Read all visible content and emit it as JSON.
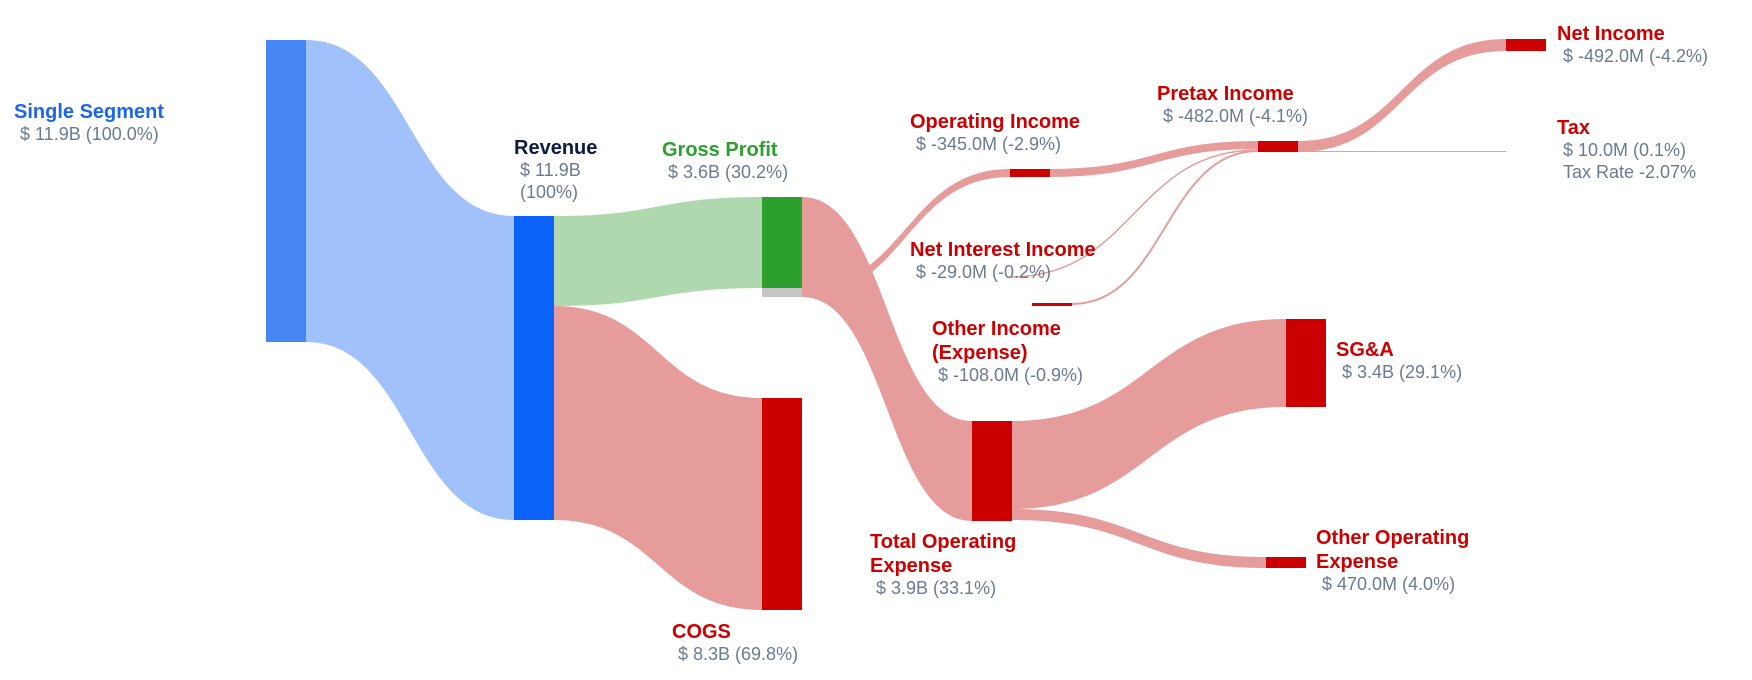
{
  "colors": {
    "blue_node": "#4687f5",
    "blue_link": "#a0c1fa",
    "revenue_node": "#0b62f7",
    "green_node": "#2ca02c",
    "green_link": "#afd8af",
    "red_node": "#cc0000",
    "red_link": "#e79c9c",
    "grey_node": "#c6c6c6",
    "segment_label": "#1a66f0",
    "revenue_label": "#0d1b3e",
    "profit_label": "#2ca02c",
    "loss_label": "#cc0000",
    "value_text": "#6b7a90"
  },
  "chart_data": {
    "type": "sankey",
    "nodes": [
      {
        "id": "single_segment",
        "name": "Single Segment",
        "value_text": "$ 11.9B (100.0%)"
      },
      {
        "id": "revenue",
        "name": "Revenue",
        "value_text": "$ 11.9B",
        "value_text2": "(100%)"
      },
      {
        "id": "gross_profit",
        "name": "Gross Profit",
        "value_text": "$ 3.6B (30.2%)"
      },
      {
        "id": "cogs",
        "name": "COGS",
        "value_text": "$ 8.3B (69.8%)"
      },
      {
        "id": "operating_income",
        "name": "Operating Income",
        "value_text": "$ -345.0M (-2.9%)"
      },
      {
        "id": "net_interest_income",
        "name": "Net Interest Income",
        "value_text": "$ -29.0M (-0.2%)"
      },
      {
        "id": "other_income",
        "name": "Other Income",
        "name2": "(Expense)",
        "value_text": "$ -108.0M (-0.9%)"
      },
      {
        "id": "total_operating_expense",
        "name": "Total Operating",
        "name2": "Expense",
        "value_text": "$ 3.9B (33.1%)"
      },
      {
        "id": "pretax_income",
        "name": "Pretax Income",
        "value_text": "$ -482.0M (-4.1%)"
      },
      {
        "id": "sga",
        "name": "SG&A",
        "value_text": "$ 3.4B (29.1%)"
      },
      {
        "id": "other_operating_expense",
        "name": "Other Operating",
        "name2": "Expense",
        "value_text": "$ 470.0M (4.0%)"
      },
      {
        "id": "net_income",
        "name": "Net Income",
        "value_text": "$ -492.0M (-4.2%)"
      },
      {
        "id": "tax",
        "name": "Tax",
        "value_text": "$ 10.0M (0.1%)",
        "value_text2": "Tax Rate -2.07%"
      }
    ],
    "links": [
      {
        "source": "single_segment",
        "target": "revenue",
        "value": 11.9
      },
      {
        "source": "revenue",
        "target": "gross_profit",
        "value": 3.6
      },
      {
        "source": "revenue",
        "target": "cogs",
        "value": 8.3
      },
      {
        "source": "gross_profit",
        "target": "total_operating_expense",
        "value": 3.9
      },
      {
        "source": "gross_profit",
        "target": "operating_income",
        "value": -0.345
      },
      {
        "source": "operating_income",
        "target": "pretax_income",
        "value": -0.345
      },
      {
        "source": "net_interest_income",
        "target": "pretax_income",
        "value": -0.029
      },
      {
        "source": "other_income",
        "target": "pretax_income",
        "value": -0.108
      },
      {
        "source": "total_operating_expense",
        "target": "sga",
        "value": 3.4
      },
      {
        "source": "total_operating_expense",
        "target": "other_operating_expense",
        "value": 0.47
      },
      {
        "source": "pretax_income",
        "target": "net_income",
        "value": -0.492
      },
      {
        "source": "pretax_income",
        "target": "tax",
        "value": 0.01
      }
    ]
  }
}
